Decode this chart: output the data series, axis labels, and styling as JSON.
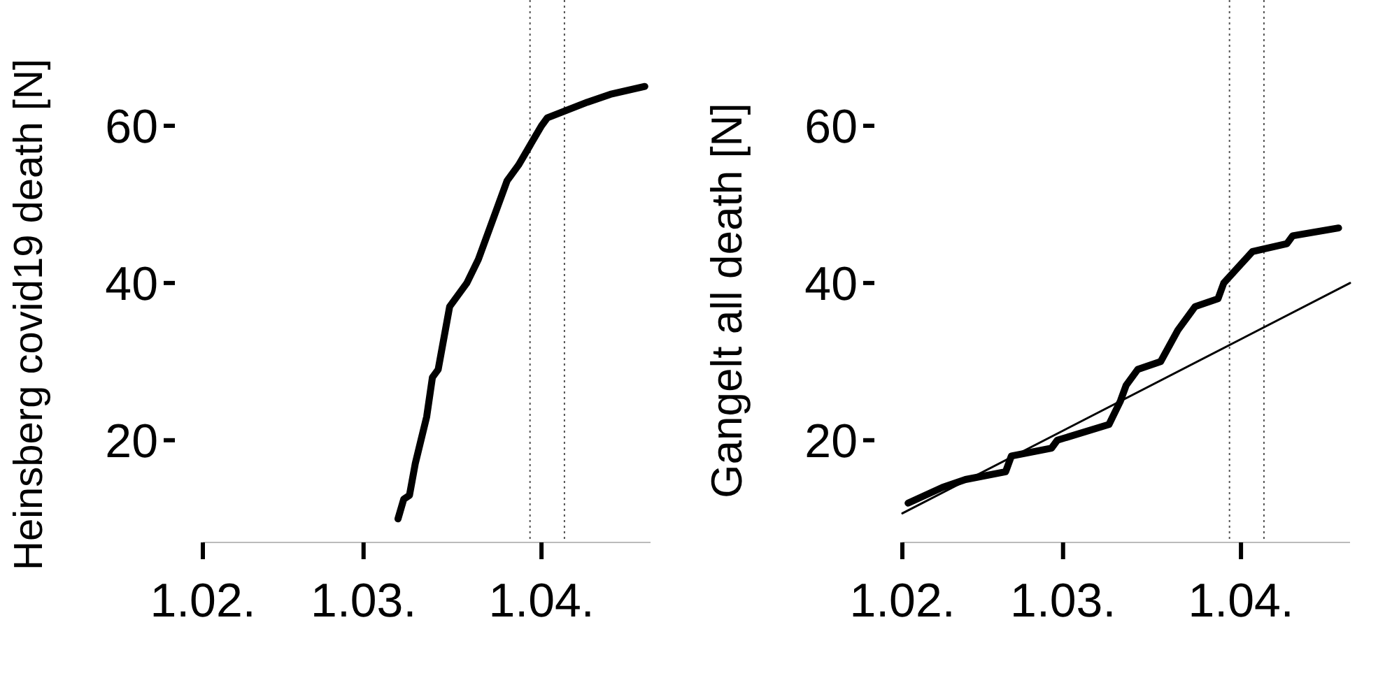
{
  "chart_data": [
    {
      "type": "line",
      "ylabel": "Heinsberg covid19 death [N]",
      "xlim": [
        "--02-01",
        "--04-20"
      ],
      "ylim": [
        7,
        76
      ],
      "xticks": [
        {
          "value": "--02-01",
          "label": "1.02."
        },
        {
          "value": "--03-01",
          "label": "1.03."
        },
        {
          "value": "--04-01",
          "label": "1.04."
        }
      ],
      "yticks": [
        20,
        40,
        60
      ],
      "series": [
        {
          "color": "#000000",
          "x": [
            "--03-07",
            "--03-08",
            "--03-09",
            "--03-10",
            "--03-11",
            "--03-12",
            "--03-13",
            "--03-14",
            "--03-16",
            "--03-19",
            "--03-21",
            "--03-26",
            "--03-28",
            "--04-01",
            "--04-02",
            "--04-09",
            "--04-13",
            "--04-19"
          ],
          "values": [
            10,
            12.5,
            13,
            17,
            20,
            23,
            28,
            29,
            37,
            40,
            43,
            53,
            55,
            60,
            61,
            63,
            64,
            65
          ]
        }
      ],
      "ref_lines": [
        {
          "axis": "x",
          "value": "--03-30",
          "line_style": "dotted",
          "color": "#555555"
        },
        {
          "axis": "x",
          "value": "--04-05",
          "line_style": "dotted",
          "color": "#555555"
        }
      ]
    },
    {
      "type": "line",
      "ylabel": "Gangelt all death [N]",
      "xlim": [
        "--02-01",
        "--04-20"
      ],
      "ylim": [
        7,
        76
      ],
      "xticks": [
        {
          "value": "--02-01",
          "label": "1.02."
        },
        {
          "value": "--03-01",
          "label": "1.03."
        },
        {
          "value": "--04-01",
          "label": "1.04."
        }
      ],
      "yticks": [
        20,
        40,
        60
      ],
      "series": [
        {
          "color": "#000000",
          "x": [
            "--02-02",
            "--02-08",
            "--02-12",
            "--02-19",
            "--02-20",
            "--02-27",
            "--02-28",
            "--03-09",
            "--03-11",
            "--03-12",
            "--03-14",
            "--03-18",
            "--03-21",
            "--03-24",
            "--03-28",
            "--03-29",
            "--04-03",
            "--04-09",
            "--04-10",
            "--04-18"
          ],
          "values": [
            12,
            14,
            15,
            16,
            18,
            19,
            20,
            22,
            25,
            27,
            29,
            30,
            34,
            37,
            38,
            40,
            44,
            45,
            46,
            47
          ]
        },
        {
          "color": "#000000",
          "type": "line",
          "x": [
            "--02-01",
            "--04-20"
          ],
          "values": [
            10.7,
            40
          ]
        }
      ],
      "ref_lines": [
        {
          "axis": "x",
          "value": "--03-30",
          "line_style": "dotted",
          "color": "#555555"
        },
        {
          "axis": "x",
          "value": "--04-05",
          "line_style": "dotted",
          "color": "#555555"
        }
      ]
    }
  ]
}
